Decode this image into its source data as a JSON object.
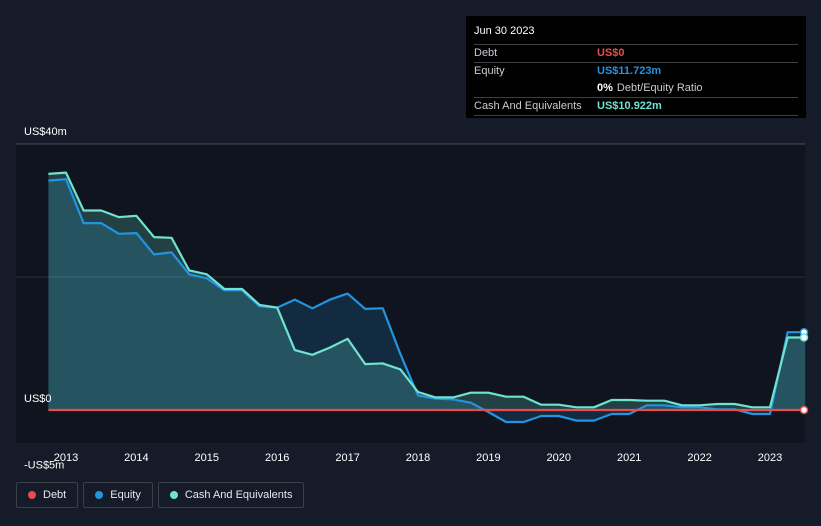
{
  "tooltip": {
    "date": "Jun 30 2023",
    "debt_label": "Debt",
    "debt_value": "US$0",
    "equity_label": "Equity",
    "equity_value": "US$11.723m",
    "ratio_value": "0%",
    "ratio_label": "Debt/Equity Ratio",
    "cash_label": "Cash And Equivalents",
    "cash_value": "US$10.922m"
  },
  "colors": {
    "debt": "#e84d4d",
    "equity": "#2394df",
    "cash": "#6fe3d0",
    "background": "#151b28",
    "plot_background": "#0f141e"
  },
  "legend": {
    "debt": "Debt",
    "equity": "Equity",
    "cash": "Cash And Equivalents"
  },
  "chart_data": {
    "type": "area",
    "y_unit": "US$ millions",
    "ylim": [
      -5,
      40
    ],
    "y_tick_labels": [
      {
        "value": 40,
        "label": "US$40m"
      },
      {
        "value": 0,
        "label": "US$0"
      },
      {
        "value": -5,
        "label": "-US$5m"
      }
    ],
    "x_tick_labels": [
      "2013",
      "2014",
      "2015",
      "2016",
      "2017",
      "2018",
      "2019",
      "2020",
      "2021",
      "2022",
      "2023"
    ],
    "xlim": [
      2012.3,
      2023.5
    ],
    "series": [
      {
        "name": "Debt",
        "x": [
          2012.75,
          2023.5
        ],
        "values": [
          0,
          0
        ]
      },
      {
        "name": "Equity",
        "x": [
          2012.75,
          2013.0,
          2013.25,
          2013.5,
          2013.75,
          2014.0,
          2014.25,
          2014.5,
          2014.75,
          2015.0,
          2015.25,
          2015.5,
          2015.75,
          2016.0,
          2016.25,
          2016.5,
          2016.75,
          2017.0,
          2017.25,
          2017.5,
          2017.75,
          2018.0,
          2018.25,
          2018.5,
          2018.75,
          2019.0,
          2019.25,
          2019.5,
          2019.75,
          2020.0,
          2020.25,
          2020.5,
          2020.75,
          2021.0,
          2021.25,
          2021.5,
          2021.75,
          2022.0,
          2022.25,
          2022.5,
          2022.75,
          2023.0,
          2023.25,
          2023.5
        ],
        "values": [
          34.5,
          34.7,
          28.1,
          28.1,
          26.5,
          26.6,
          23.4,
          23.7,
          20.4,
          19.8,
          18.0,
          18.0,
          15.6,
          15.4,
          16.6,
          15.3,
          16.6,
          17.5,
          15.2,
          15.3,
          8.4,
          2.2,
          1.7,
          1.6,
          1.1,
          -0.3,
          -1.8,
          -1.8,
          -0.9,
          -0.9,
          -1.6,
          -1.6,
          -0.6,
          -0.6,
          0.7,
          0.7,
          0.4,
          0.4,
          0.1,
          0.1,
          -0.6,
          -0.6,
          11.7,
          11.7
        ]
      },
      {
        "name": "Cash And Equivalents",
        "x": [
          2012.75,
          2013.0,
          2013.25,
          2013.5,
          2013.75,
          2014.0,
          2014.25,
          2014.5,
          2014.75,
          2015.0,
          2015.25,
          2015.5,
          2015.75,
          2016.0,
          2016.25,
          2016.5,
          2016.75,
          2017.0,
          2017.25,
          2017.5,
          2017.75,
          2018.0,
          2018.25,
          2018.5,
          2018.75,
          2019.0,
          2019.25,
          2019.5,
          2019.75,
          2020.0,
          2020.25,
          2020.5,
          2020.75,
          2021.0,
          2021.25,
          2021.5,
          2021.75,
          2022.0,
          2022.25,
          2022.5,
          2022.75,
          2023.0,
          2023.25,
          2023.5
        ],
        "values": [
          35.5,
          35.7,
          30.0,
          30.0,
          29.0,
          29.2,
          26.0,
          25.9,
          21.0,
          20.4,
          18.2,
          18.2,
          15.8,
          15.4,
          9.0,
          8.3,
          9.4,
          10.7,
          6.9,
          7.0,
          6.1,
          2.7,
          1.9,
          1.9,
          2.6,
          2.6,
          2.0,
          2.0,
          0.8,
          0.8,
          0.4,
          0.4,
          1.5,
          1.5,
          1.4,
          1.4,
          0.7,
          0.7,
          0.9,
          0.9,
          0.4,
          0.4,
          10.9,
          10.9
        ]
      }
    ],
    "grid": true
  }
}
